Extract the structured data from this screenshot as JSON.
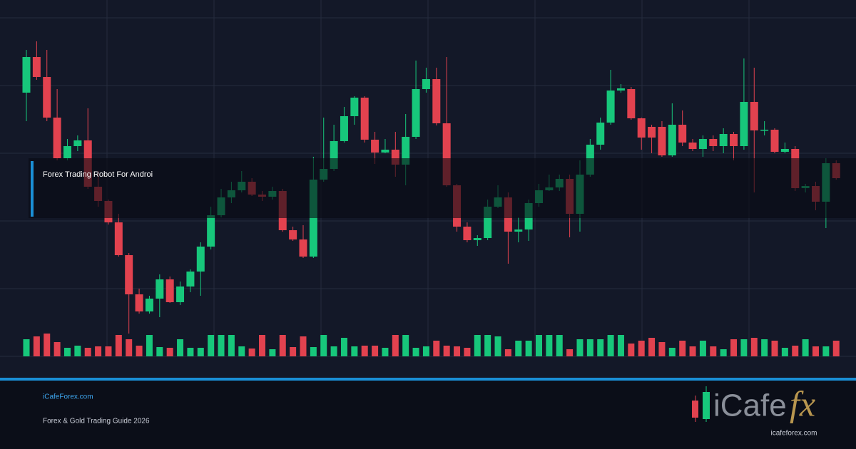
{
  "chart_data": {
    "type": "candlestick",
    "open": [
      370,
      420,
      392,
      335,
      278,
      295,
      303,
      238,
      218,
      188,
      142,
      87,
      63,
      81,
      108,
      76,
      98,
      119,
      154,
      198,
      223,
      233,
      245,
      227,
      224,
      232,
      177,
      164,
      140,
      248,
      263,
      302,
      337,
      363,
      304,
      286,
      290,
      269,
      308,
      375,
      389,
      327,
      240,
      182,
      163,
      166,
      210,
      223,
      175,
      178,
      215,
      233,
      237,
      249,
      200,
      255,
      297,
      328,
      373,
      375,
      334,
      322,
      322,
      282,
      325,
      300,
      291,
      305,
      295,
      312,
      295,
      357,
      317,
      318,
      287,
      291,
      236,
      239,
      217,
      271
    ],
    "high": [
      430,
      442,
      430,
      375,
      305,
      310,
      348,
      260,
      220,
      200,
      145,
      95,
      85,
      115,
      112,
      105,
      122,
      160,
      210,
      235,
      245,
      260,
      250,
      232,
      238,
      235,
      182,
      184,
      280,
      335,
      325,
      350,
      365,
      365,
      315,
      305,
      315,
      340,
      415,
      405,
      405,
      420,
      242,
      188,
      170,
      220,
      240,
      230,
      195,
      220,
      242,
      255,
      255,
      255,
      275,
      305,
      335,
      402,
      382,
      378,
      335,
      325,
      330,
      355,
      345,
      305,
      310,
      310,
      320,
      315,
      418,
      405,
      330,
      320,
      300,
      295,
      242,
      245,
      278,
      275
    ],
    "low": [
      330,
      388,
      330,
      275,
      275,
      288,
      235,
      210,
      185,
      140,
      32,
      60,
      60,
      55,
      75,
      72,
      90,
      85,
      150,
      195,
      215,
      230,
      225,
      218,
      220,
      175,
      162,
      138,
      138,
      245,
      260,
      300,
      325,
      300,
      270,
      285,
      252,
      240,
      305,
      370,
      324,
      238,
      175,
      160,
      155,
      163,
      208,
      130,
      160,
      162,
      210,
      232,
      232,
      167,
      175,
      252,
      290,
      325,
      370,
      332,
      290,
      285,
      280,
      280,
      295,
      288,
      280,
      288,
      285,
      275,
      290,
      230,
      310,
      285,
      285,
      232,
      230,
      205,
      180,
      248
    ],
    "close": [
      420,
      392,
      335,
      278,
      295,
      303,
      238,
      218,
      188,
      142,
      87,
      63,
      81,
      108,
      76,
      98,
      119,
      154,
      198,
      223,
      233,
      245,
      227,
      224,
      232,
      177,
      164,
      140,
      248,
      263,
      302,
      337,
      363,
      304,
      286,
      290,
      269,
      308,
      375,
      389,
      327,
      240,
      182,
      163,
      166,
      210,
      223,
      175,
      178,
      215,
      233,
      237,
      249,
      200,
      255,
      297,
      328,
      373,
      376,
      334,
      307,
      307,
      282,
      325,
      300,
      291,
      305,
      295,
      312,
      295,
      357,
      317,
      318,
      287,
      291,
      236,
      239,
      217,
      271,
      250
    ],
    "volume": [
      24,
      28,
      32,
      20,
      12,
      15,
      12,
      14,
      14,
      30,
      24,
      15,
      30,
      13,
      12,
      24,
      12,
      12,
      30,
      30,
      30,
      14,
      11,
      30,
      10,
      30,
      13,
      28,
      13,
      30,
      14,
      26,
      14,
      15,
      15,
      12,
      30,
      30,
      12,
      14,
      22,
      15,
      14,
      12,
      30,
      30,
      28,
      10,
      22,
      22,
      30,
      30,
      30,
      10,
      24,
      24,
      24,
      30,
      30,
      18,
      22,
      26,
      20,
      12,
      22,
      14,
      22,
      14,
      10,
      24,
      24,
      26,
      24,
      22,
      12,
      15,
      24,
      14,
      14,
      22
    ],
    "up_color": "#17c77b",
    "down_color": "#e2424f",
    "ylim": [
      0,
      475
    ],
    "volume_lim": [
      0,
      40
    ],
    "grid": true,
    "ygrid": [
      95,
      190,
      285,
      380
    ]
  },
  "overlay_label": "Forex Trading Robot For Androi",
  "footer": {
    "site": "iCafeForex.com",
    "tagline": "Forex & Gold Trading Guide 2026"
  },
  "logo": {
    "wordmark": "iCafe",
    "accent": "fx",
    "url": "icafeforex.com"
  }
}
